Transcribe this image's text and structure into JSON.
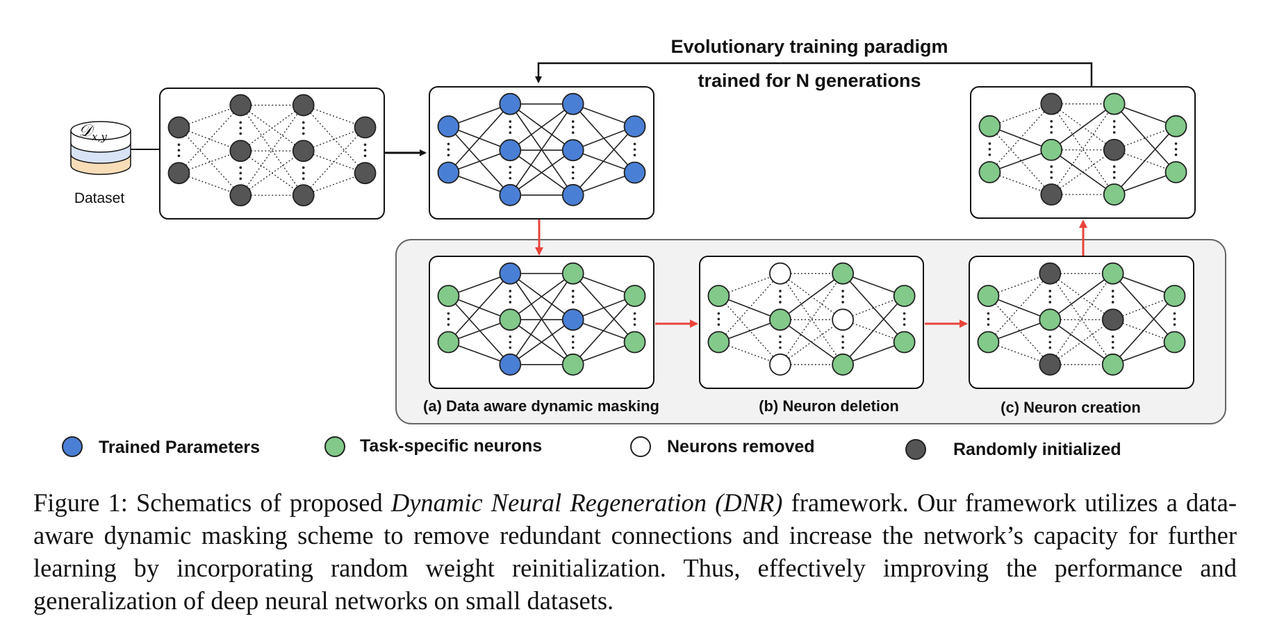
{
  "diagram": {
    "title": "Evolutionary training paradigm",
    "subtitle": "trained for N generations",
    "dataset_symbol": "𝒟",
    "dataset_subscript": "x,y",
    "dataset_label": "Dataset",
    "steps": [
      {
        "label": "(a) Data aware dynamic masking"
      },
      {
        "label": "(b) Neuron deletion"
      },
      {
        "label": "(c) Neuron creation"
      }
    ],
    "legend": [
      {
        "label": "Trained Parameters",
        "color": "#4a7fd6"
      },
      {
        "label": "Task-specific neurons",
        "color": "#82c98a"
      },
      {
        "label": "Neurons removed",
        "color": "#ffffff"
      },
      {
        "label": "Randomly initialized",
        "color": "#555555"
      }
    ],
    "colors": {
      "trained": "#4a7fd6",
      "task": "#82c98a",
      "removed": "#ffffff",
      "random": "#555555",
      "arrow_red": "#e8443a"
    }
  },
  "caption": {
    "prefix": "Figure 1: Schematics of proposed ",
    "italic": "Dynamic Neural Regeneration (DNR)",
    "suffix": " framework. Our framework utilizes a data-aware dynamic masking scheme to remove redundant connections and increase the network’s capacity for further learning by incorporating random weight reinitialization. Thus, effectively improving the performance and generalization of deep neural networks on small datasets."
  }
}
